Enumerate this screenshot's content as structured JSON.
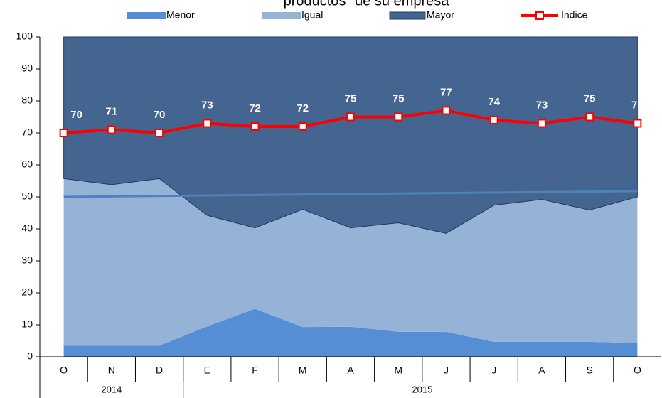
{
  "chart_data": {
    "type": "stacked-area-line",
    "title": "productos\" de su empresa",
    "categories": [
      "O",
      "N",
      "D",
      "E",
      "F",
      "M",
      "A",
      "M",
      "J",
      "J",
      "A",
      "S",
      "O"
    ],
    "groups": [
      {
        "label": "2014",
        "span": 3
      },
      {
        "label": "2015",
        "span": 10
      }
    ],
    "series": [
      {
        "name": "Menor",
        "color": "#558ed5",
        "values": [
          3.5,
          3.5,
          3.5,
          9.5,
          15,
          9.3,
          9.4,
          7.8,
          7.8,
          4.7,
          4.7,
          4.7,
          4.3
        ]
      },
      {
        "name": "Igual",
        "color": "#95b3d7",
        "values": [
          52.2,
          50.3,
          52.2,
          34.7,
          25.3,
          36.8,
          30.9,
          34.1,
          30.8,
          42.7,
          44.5,
          41.2,
          45.7
        ]
      },
      {
        "name": "Mayor",
        "color": "#44658f",
        "values": [
          44.3,
          46.2,
          44.3,
          55.8,
          59.7,
          53.9,
          59.7,
          58.1,
          61.4,
          52.6,
          50.8,
          54.1,
          50
        ]
      },
      {
        "name": "Indice",
        "color": "#ff0000",
        "type": "line",
        "values": [
          70,
          71,
          70,
          73,
          72,
          72,
          75,
          75,
          77,
          74,
          73,
          75,
          73
        ]
      }
    ],
    "trendline": {
      "color": "#4f81bd",
      "values": [
        50,
        51.8
      ]
    },
    "ylim": [
      0,
      100
    ],
    "yticks": [
      0,
      10,
      20,
      30,
      40,
      50,
      60,
      70,
      80,
      90,
      100
    ]
  }
}
